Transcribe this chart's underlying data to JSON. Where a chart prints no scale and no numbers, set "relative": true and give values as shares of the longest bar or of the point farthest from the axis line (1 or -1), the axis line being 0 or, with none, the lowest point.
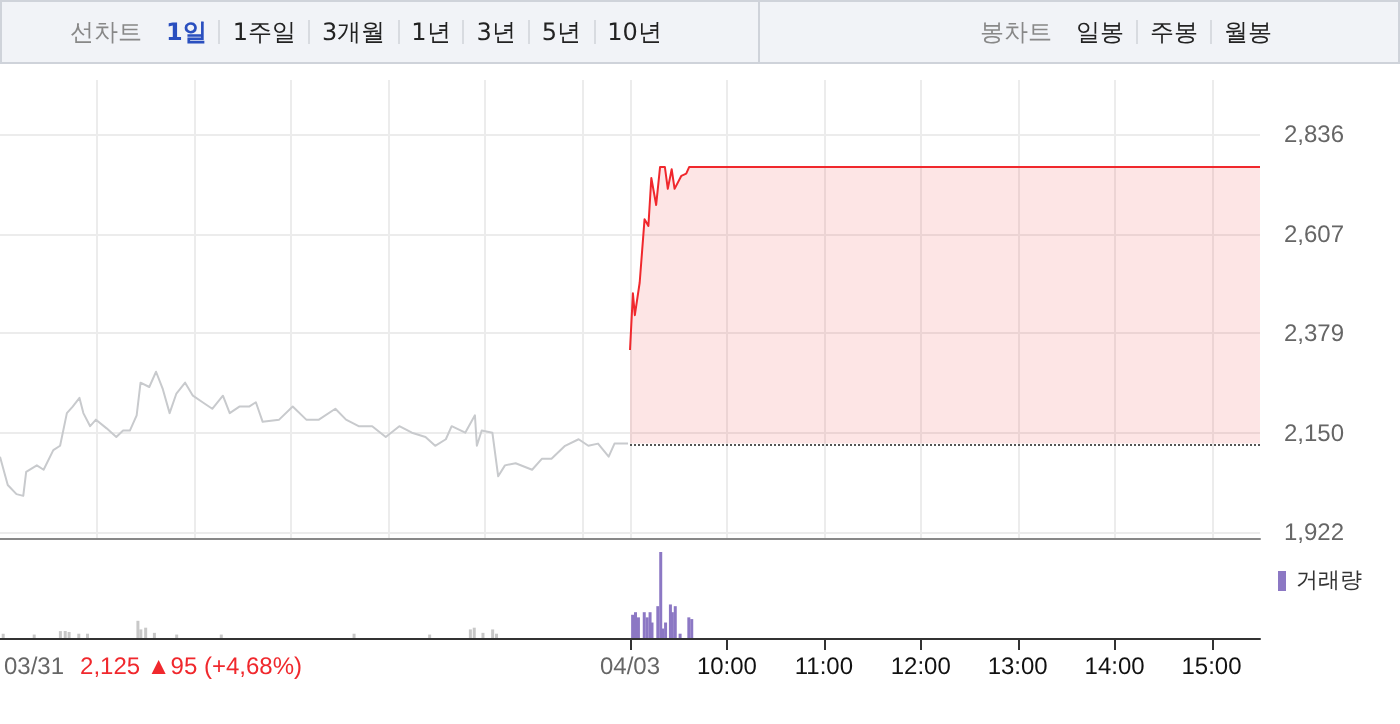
{
  "chart_data": [
    {
      "type": "other",
      "annotations": [
        "선차트",
        "1일",
        "1주일",
        "3개월",
        "1년",
        "3년",
        "5년",
        "10년"
      ]
    },
    {
      "type": "other",
      "annotations": [
        "봉차트",
        "일봉",
        "주봉",
        "월봉"
      ]
    },
    {
      "type": "line",
      "xlim": [
        2.5,
        15.5
      ],
      "xticks": [
        {
          "value": 3.5,
          "label": null
        },
        {
          "value": 4.5,
          "label": null
        },
        {
          "value": 5.5,
          "label": null
        },
        {
          "value": 6.5,
          "label": null
        },
        {
          "value": 7.5,
          "label": null
        },
        {
          "value": 8.5,
          "label": null
        },
        {
          "value": 9,
          "label": null
        },
        {
          "value": 10,
          "label": null
        },
        {
          "value": 11,
          "label": null
        },
        {
          "value": 12,
          "label": null
        },
        {
          "value": 13,
          "label": null
        },
        {
          "value": 14,
          "label": null
        },
        {
          "value": 15,
          "label": null
        }
      ],
      "ylim": [
        1908,
        2960
      ],
      "yticks": [
        {
          "value": 1922,
          "label": "1,922"
        },
        {
          "value": 2150,
          "label": "2,150"
        },
        {
          "value": 2379,
          "label": "2,379"
        },
        {
          "value": 2607,
          "label": "2,607"
        },
        {
          "value": 2836,
          "label": "2,836"
        }
      ],
      "grid": true,
      "tick_labels": "y",
      "line_style": "solid",
      "legend": false,
      "ref_lines": [
        {
          "axis": "y",
          "value": 2125,
          "color": "#555555",
          "line_style": "dotted"
        }
      ],
      "series": [
        {
          "color": "#c8cacd",
          "x": [
            2.5,
            2.58,
            2.67,
            2.74,
            2.77,
            2.88,
            2.95,
            3.05,
            3.12,
            3.19,
            3.25,
            3.32,
            3.36,
            3.43,
            3.49,
            3.6,
            3.7,
            3.77,
            3.84,
            3.91,
            3.95,
            4.04,
            4.11,
            4.18,
            4.25,
            4.32,
            4.41,
            4.49,
            4.59,
            4.69,
            4.8,
            4.87,
            4.97,
            5.07,
            5.14,
            5.21,
            5.38,
            5.52,
            5.66,
            5.79,
            5.96,
            6.07,
            6.2,
            6.34,
            6.48,
            6.62,
            6.75,
            6.89,
            6.99,
            7.1,
            7.16,
            7.3,
            7.4,
            7.42,
            7.47,
            7.58,
            7.64,
            7.71,
            7.82,
            7.99,
            8.09,
            8.19,
            8.33,
            8.47,
            8.57,
            8.67,
            8.78,
            8.84,
            8.98
          ],
          "values": [
            2095,
            2030,
            2009,
            2005,
            2060,
            2075,
            2065,
            2110,
            2120,
            2195,
            2210,
            2230,
            2195,
            2165,
            2180,
            2160,
            2140,
            2155,
            2155,
            2190,
            2265,
            2255,
            2290,
            2250,
            2195,
            2240,
            2265,
            2235,
            2220,
            2205,
            2235,
            2195,
            2210,
            2210,
            2220,
            2175,
            2180,
            2210,
            2180,
            2180,
            2205,
            2180,
            2165,
            2165,
            2140,
            2165,
            2150,
            2140,
            2120,
            2135,
            2165,
            2150,
            2190,
            2120,
            2155,
            2150,
            2050,
            2075,
            2080,
            2065,
            2090,
            2090,
            2120,
            2135,
            2120,
            2125,
            2095,
            2125,
            2125
          ]
        },
        {
          "type": "area",
          "color": "#f0282d",
          "x": [
            9.0,
            9.03,
            9.05,
            9.1,
            9.15,
            9.19,
            9.22,
            9.27,
            9.31,
            9.36,
            9.39,
            9.43,
            9.46,
            9.53,
            9.58,
            9.61,
            15.5
          ],
          "values": [
            2340,
            2470,
            2420,
            2495,
            2640,
            2625,
            2735,
            2673,
            2760,
            2760,
            2710,
            2755,
            2710,
            2740,
            2745,
            2760,
            2760
          ]
        }
      ]
    },
    {
      "type": "bar",
      "relative": true,
      "xlim": [
        2.5,
        15.5
      ],
      "xticks": [
        {
          "value": 9,
          "label": null
        },
        {
          "value": 10,
          "label": "10:00"
        },
        {
          "value": 11,
          "label": "11:00"
        },
        {
          "value": 12,
          "label": "12:00"
        },
        {
          "value": 13,
          "label": "13:00"
        },
        {
          "value": 14,
          "label": "14:00"
        },
        {
          "value": 15,
          "label": "15:00"
        }
      ],
      "tick_labels": "x",
      "grid": false,
      "legend": "top right",
      "annotations": [
        "03/31",
        "2,125 ▲95 (+4,68%)",
        "04/03"
      ],
      "series": [
        {
          "color": "#c8c8c8",
          "x": [
            2.55,
            2.87,
            3.14,
            3.19,
            3.23,
            3.33,
            3.42,
            3.94,
            3.97,
            4.02,
            4.11,
            4.34,
            4.8,
            6.17,
            6.95,
            7.37,
            7.41,
            7.5,
            7.6,
            7.64
          ],
          "values": [
            0.05,
            0.04,
            0.08,
            0.08,
            0.07,
            0.05,
            0.05,
            0.2,
            0.1,
            0.12,
            0.06,
            0.04,
            0.04,
            0.05,
            0.04,
            0.1,
            0.12,
            0.06,
            0.1,
            0.05
          ]
        },
        {
          "name": "거래량",
          "color": "#8c78c4",
          "x": [
            9.01,
            9.04,
            9.07,
            9.13,
            9.16,
            9.19,
            9.21,
            9.27,
            9.3,
            9.32,
            9.35,
            9.4,
            9.42,
            9.45,
            9.5,
            9.59,
            9.62
          ],
          "values": [
            0.27,
            0.3,
            0.24,
            0.3,
            0.24,
            0.3,
            0.18,
            0.37,
            1,
            0.11,
            0.18,
            0.39,
            0.3,
            0.37,
            0.05,
            0.24,
            0.22
          ]
        }
      ]
    }
  ]
}
